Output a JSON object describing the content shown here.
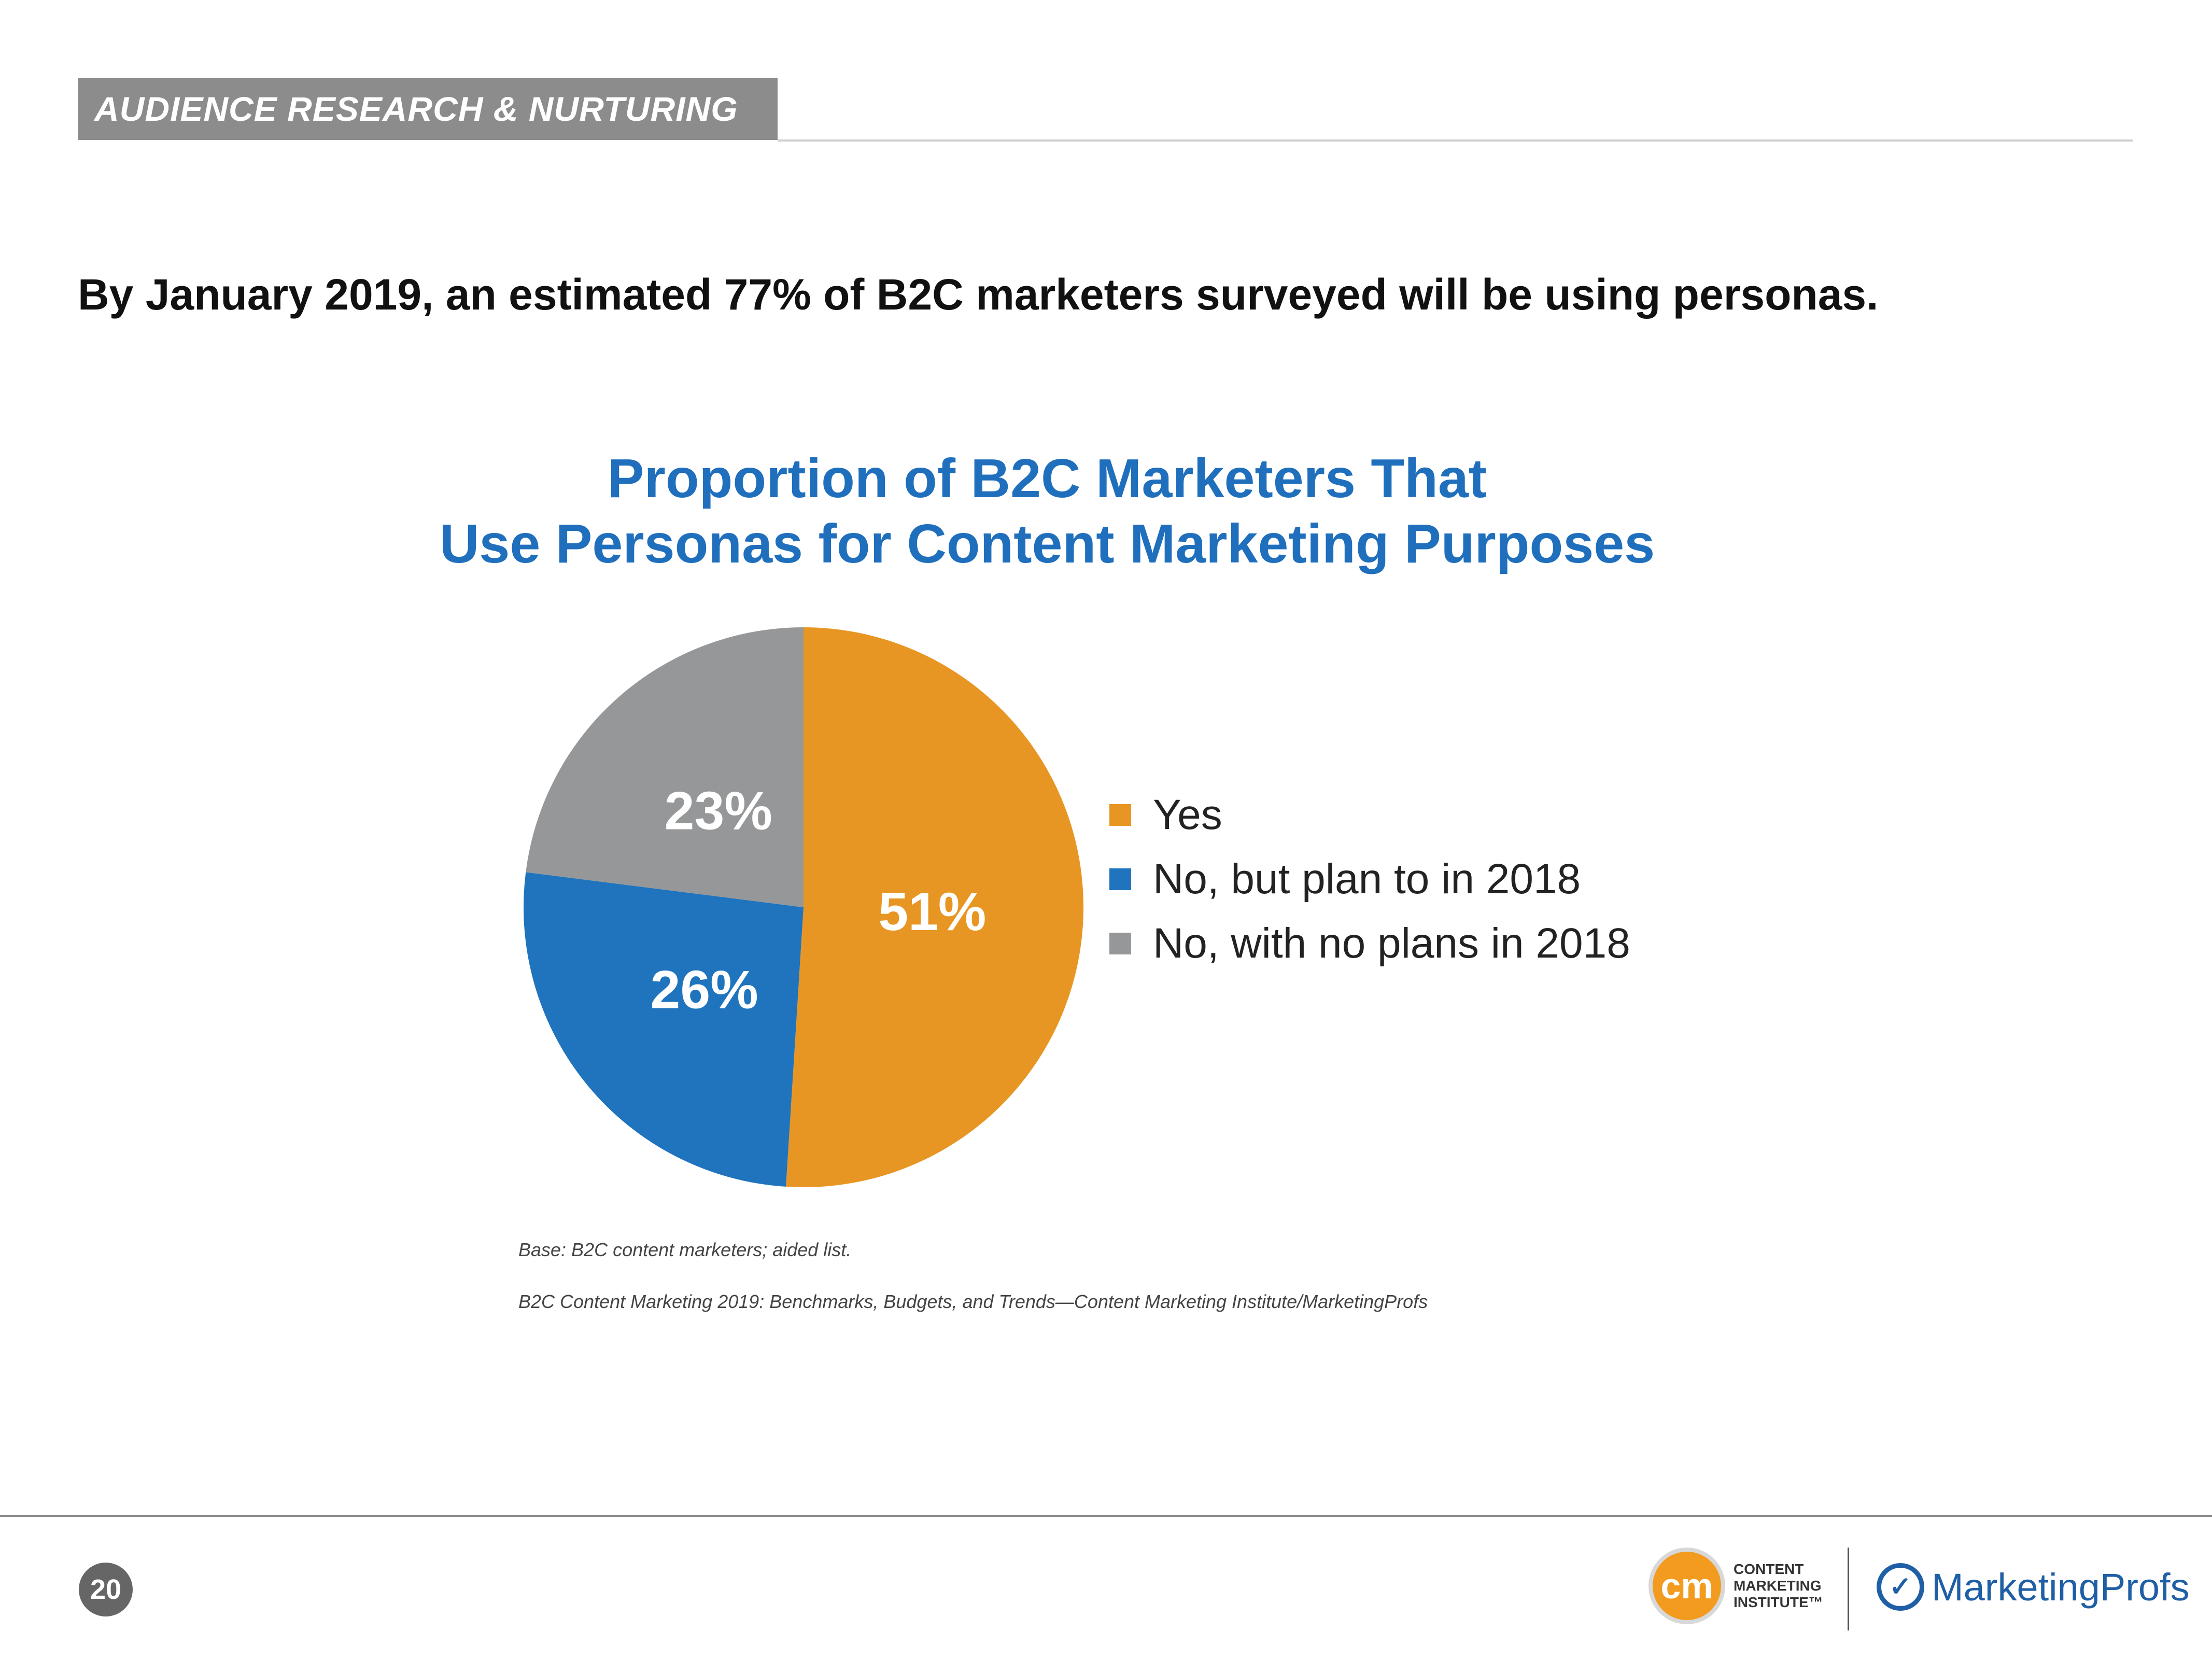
{
  "header": {
    "section_label": "AUDIENCE RESEARCH & NURTURING"
  },
  "headline": "By January 2019, an estimated 77% of B2C marketers surveyed will be using personas.",
  "chart_data": {
    "type": "pie",
    "title": "Proportion of B2C Marketers That\nUse Personas for Content Marketing Purposes",
    "title_lines": [
      "Proportion of B2C Marketers That",
      "Use Personas for Content Marketing Purposes"
    ],
    "slices": [
      {
        "label": "Yes",
        "value": 51,
        "display": "51%",
        "color": "#e89623"
      },
      {
        "label": "No, but plan to in 2018",
        "value": 26,
        "display": "26%",
        "color": "#1f74bd"
      },
      {
        "label": "No, with no plans in 2018",
        "value": 23,
        "display": "23%",
        "color": "#969799"
      }
    ],
    "legend_position": "right",
    "start": "12 o'clock, clockwise"
  },
  "notes": {
    "base": "Base: B2C content marketers; aided list.",
    "source": "B2C Content Marketing 2019: Benchmarks, Budgets, and Trends—Content Marketing Institute/MarketingProfs"
  },
  "footer": {
    "page_number": "20",
    "cmi_logo": {
      "mark": "cm",
      "lines": [
        "CONTENT",
        "MARKETING",
        "INSTITUTE™"
      ]
    },
    "mp_logo": {
      "text": "MarketingProfs"
    }
  },
  "colors": {
    "accent": "#1f6fbd",
    "header_gray": "#8c8c8d"
  }
}
